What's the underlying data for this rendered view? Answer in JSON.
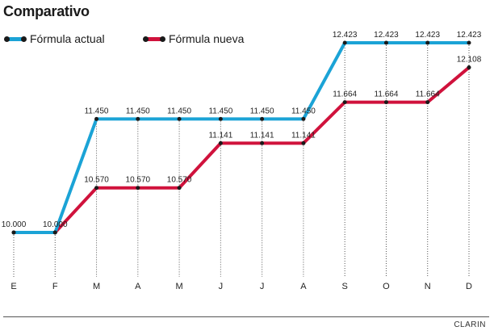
{
  "title": "Comparativo",
  "source": "CLARIN",
  "chart_data": {
    "type": "line",
    "categories": [
      "E",
      "F",
      "M",
      "A",
      "M",
      "J",
      "J",
      "A",
      "S",
      "O",
      "N",
      "D"
    ],
    "series": [
      {
        "name": "Fórmula actual",
        "color": "#1ba3d6",
        "values": [
          10000,
          10000,
          11450,
          11450,
          11450,
          11450,
          11450,
          11450,
          12423,
          12423,
          12423,
          12423
        ],
        "labels": [
          "10.000",
          "10.000",
          "11.450",
          "11.450",
          "11.450",
          "11.450",
          "11.450",
          "11.450",
          "12.423",
          "12.423",
          "12.423",
          "12.423"
        ]
      },
      {
        "name": "Fórmula nueva",
        "color": "#d0123c",
        "values": [
          10000,
          10000,
          10570,
          10570,
          10570,
          11141,
          11141,
          11141,
          11664,
          11664,
          11664,
          12108
        ],
        "labels": [
          "10.000",
          "10.000",
          "10.570",
          "10.570",
          "10.570",
          "11.141",
          "11.141",
          "11.141",
          "11.664",
          "11.664",
          "11.664",
          "12.108"
        ]
      }
    ],
    "ylim": [
      10000,
      12423
    ],
    "grid": "vertical-dotted",
    "legend_position": "top-left"
  }
}
